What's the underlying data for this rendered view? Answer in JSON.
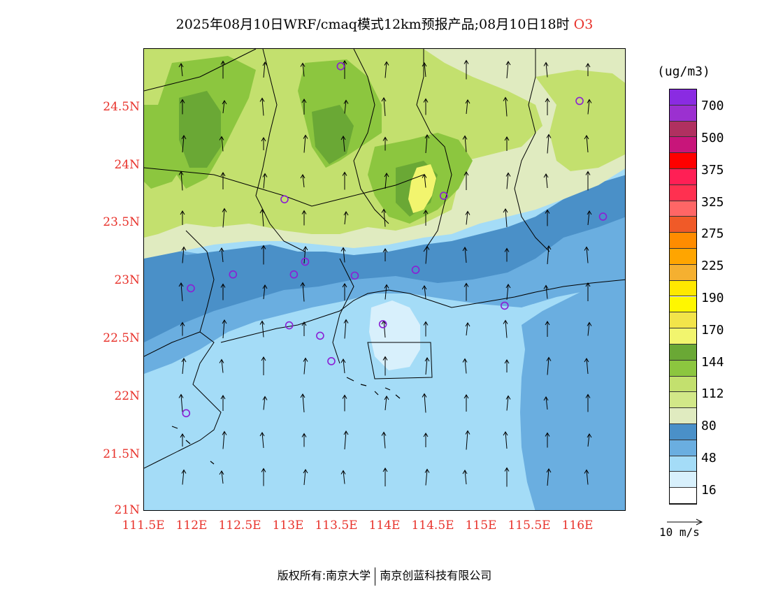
{
  "title": {
    "main": "2025年08月10日WRF/cmaq模式12km预报产品;08月10日18时",
    "species": "O3"
  },
  "map": {
    "lat_labels": [
      "24.5N",
      "24N",
      "23.5N",
      "23N",
      "22.5N",
      "22N",
      "21.5N",
      "21N"
    ],
    "lon_labels": [
      "111.5E",
      "112E",
      "112.5E",
      "113E",
      "113.5E",
      "114E",
      "114.5E",
      "115E",
      "115.5E",
      "116E"
    ],
    "stations": [
      {
        "lon": 113.6,
        "lat": 24.85
      },
      {
        "lon": 113.0,
        "lat": 23.7
      },
      {
        "lon": 114.7,
        "lat": 23.73
      },
      {
        "lon": 116.15,
        "lat": 24.55
      },
      {
        "lon": 116.4,
        "lat": 23.55
      },
      {
        "lon": 112.0,
        "lat": 22.93
      },
      {
        "lon": 112.45,
        "lat": 23.05
      },
      {
        "lon": 113.1,
        "lat": 23.05
      },
      {
        "lon": 113.22,
        "lat": 23.16
      },
      {
        "lon": 113.75,
        "lat": 23.04
      },
      {
        "lon": 114.4,
        "lat": 23.09
      },
      {
        "lon": 113.05,
        "lat": 22.61
      },
      {
        "lon": 113.38,
        "lat": 22.52
      },
      {
        "lon": 113.5,
        "lat": 22.3
      },
      {
        "lon": 114.05,
        "lat": 22.62
      },
      {
        "lon": 115.35,
        "lat": 22.78
      },
      {
        "lon": 111.95,
        "lat": 21.85
      }
    ],
    "station_color": "#8b1fd4",
    "wind_direction": "south-to-north"
  },
  "colorbar": {
    "unit": "(ug/m3)",
    "labels": [
      "700",
      "500",
      "375",
      "325",
      "275",
      "225",
      "190",
      "170",
      "144",
      "112",
      "80",
      "48",
      "16"
    ],
    "colors": [
      "#8a2be2",
      "#9b30d0",
      "#b03060",
      "#c8157a",
      "#ff0000",
      "#ff1f55",
      "#ff3050",
      "#ff6666",
      "#f05a28",
      "#ff8c00",
      "#ffa500",
      "#f5b030",
      "#ffe800",
      "#fff700",
      "#f2e44a",
      "#f2f56e",
      "#6aa835",
      "#8cc63f",
      "#c3e06e",
      "#d2e888",
      "#e0ebc0",
      "#4a90c8",
      "#6aaee0",
      "#a4dcf7",
      "#d8f0fc",
      "#ffffff"
    ]
  },
  "reference_vector": "10 m/s",
  "footer": {
    "left": "版权所有:南京大学",
    "right": "南京创蓝科技有限公司"
  }
}
